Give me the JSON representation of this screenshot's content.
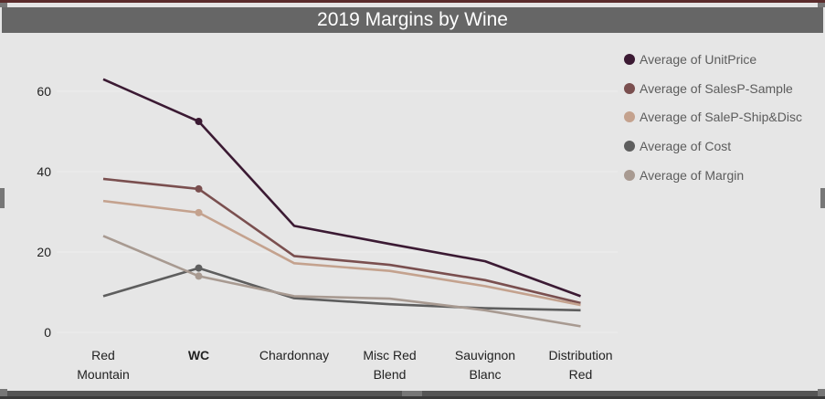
{
  "title": "2019 Margins by Wine",
  "chart_data": {
    "type": "line",
    "title": "2019 Margins by Wine",
    "categories": [
      [
        "Red",
        "Mountain"
      ],
      [
        "WC"
      ],
      [
        "Chardonnay"
      ],
      [
        "Misc Red",
        "Blend"
      ],
      [
        "Sauvignon",
        "Blanc"
      ],
      [
        "Distribution",
        "Red"
      ]
    ],
    "highlighted_category": "WC",
    "ylim": [
      0,
      70
    ],
    "yticks": [
      0,
      20,
      40,
      60
    ],
    "grid": true,
    "legend_position": "right",
    "series": [
      {
        "name": "Average of UnitPrice",
        "color": "#3b1a33",
        "values": [
          63,
          52.5,
          26.5,
          22,
          17.7,
          9
        ]
      },
      {
        "name": "Average of SalesP-Sample",
        "color": "#7a4f4f",
        "values": [
          38.2,
          35.7,
          19,
          16.8,
          13,
          7.3
        ]
      },
      {
        "name": "Average of SaleP-Ship&Disc",
        "color": "#c4a28e",
        "values": [
          32.7,
          29.8,
          17.2,
          15.3,
          11.5,
          6.8
        ]
      },
      {
        "name": "Average of Cost",
        "color": "#5e5e5e",
        "values": [
          9,
          16,
          8.5,
          7,
          6,
          5.5
        ]
      },
      {
        "name": "Average of Margin",
        "color": "#a89a91",
        "values": [
          24,
          14,
          9,
          8.4,
          5.5,
          1.5
        ]
      }
    ]
  }
}
